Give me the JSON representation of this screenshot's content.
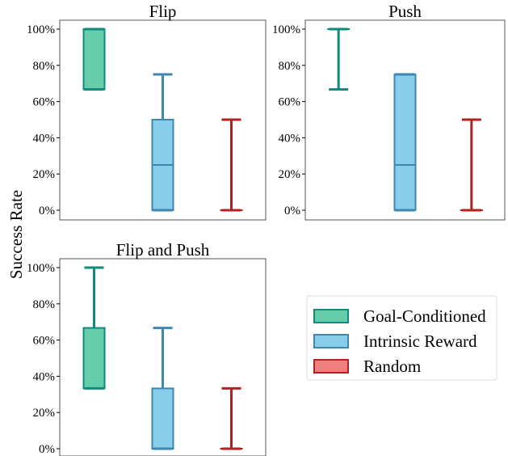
{
  "figure": {
    "ylabel": "Success Rate",
    "legend": [
      {
        "label": "Goal-Conditioned",
        "color": "#66cdaa",
        "edge": "#108a7e"
      },
      {
        "label": "Intrinsic Reward",
        "color": "#87ceeb",
        "edge": "#3f86b0"
      },
      {
        "label": "Random",
        "color": "#f08080",
        "edge": "#b22222"
      }
    ],
    "legend_location": "lower-right"
  },
  "chart_data": [
    {
      "type": "box",
      "title": "Flip",
      "ylim": [
        0,
        100
      ],
      "yticks": [
        "0%",
        "20%",
        "40%",
        "60%",
        "80%",
        "100%"
      ],
      "series": [
        {
          "name": "Goal-Conditioned",
          "min": 66.7,
          "q1": 66.7,
          "median": 100,
          "q3": 100,
          "max": 100
        },
        {
          "name": "Intrinsic Reward",
          "min": 0,
          "q1": 0,
          "median": 25,
          "q3": 50,
          "max": 75
        },
        {
          "name": "Random",
          "min": 0,
          "q1": 0,
          "median": 0,
          "q3": 0,
          "max": 50
        }
      ]
    },
    {
      "type": "box",
      "title": "Push",
      "ylim": [
        0,
        100
      ],
      "yticks": [
        "0%",
        "20%",
        "40%",
        "60%",
        "80%",
        "100%"
      ],
      "series": [
        {
          "name": "Goal-Conditioned",
          "min": 66.7,
          "q1": 100,
          "median": 100,
          "q3": 100,
          "max": 100
        },
        {
          "name": "Intrinsic Reward",
          "min": 0,
          "q1": 0,
          "median": 25,
          "q3": 75,
          "max": 75
        },
        {
          "name": "Random",
          "min": 0,
          "q1": 0,
          "median": 0,
          "q3": 0,
          "max": 50
        }
      ]
    },
    {
      "type": "box",
      "title": "Flip and Push",
      "ylim": [
        0,
        100
      ],
      "yticks": [
        "0%",
        "20%",
        "40%",
        "60%",
        "80%",
        "100%"
      ],
      "series": [
        {
          "name": "Goal-Conditioned",
          "min": 33.3,
          "q1": 33.3,
          "median": 33.3,
          "q3": 66.7,
          "max": 100
        },
        {
          "name": "Intrinsic Reward",
          "min": 0,
          "q1": 0,
          "median": 0,
          "q3": 33.3,
          "max": 66.7
        },
        {
          "name": "Random",
          "min": 0,
          "q1": 0,
          "median": 0,
          "q3": 0,
          "max": 33.3
        }
      ]
    }
  ]
}
